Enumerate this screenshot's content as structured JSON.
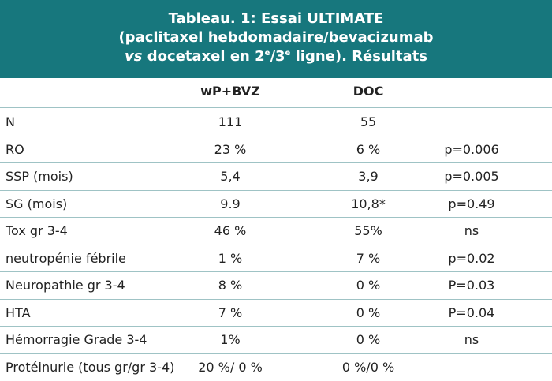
{
  "header": {
    "title_lines": [
      "Tableau. 1: Essai ULTIMATE",
      "(paclitaxel hebdomadaire/bevacizumab"
    ],
    "title_line3": {
      "italic": "vs",
      "a": " docetaxel en 2",
      "sup1": "e",
      "b": "/3",
      "sup2": "e",
      "c": " ligne). Résultats"
    }
  },
  "table": {
    "columns": [
      "wP+BVZ",
      "DOC"
    ],
    "rows": [
      [
        "N",
        "111",
        "55"
      ],
      [
        "RO",
        "23 %",
        "6 %",
        "p=0.006"
      ],
      [
        "SSP (mois)",
        "5,4",
        "3,9",
        "p=0.005"
      ],
      [
        "SG (mois)",
        "9.9",
        "10,8*",
        "p=0.49"
      ],
      [
        "Tox gr 3-4",
        "46 %",
        "55%",
        "ns"
      ],
      [
        "neutropénie fébrile",
        "1 %",
        "7 %",
        "p=0.02"
      ],
      [
        "Neuropathie gr 3-4",
        "8 %",
        "0 %",
        "P=0.03"
      ],
      [
        "HTA",
        "7 %",
        "0 %",
        "P=0.04"
      ],
      [
        "Hémorragie Grade 3-4",
        "1%",
        "0 %",
        "ns"
      ],
      [
        "Protéinurie (tous gr/gr 3-4)",
        "20 %/ 0 %",
        "0 %/0 %"
      ]
    ]
  }
}
